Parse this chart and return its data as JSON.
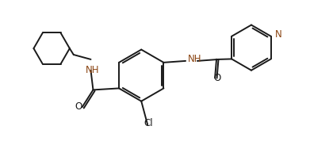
{
  "bg_color": "#ffffff",
  "line_color": "#1a1a1a",
  "heteroatom_color": "#8B4513",
  "lw": 1.4,
  "figsize": [
    3.91,
    2.12
  ],
  "dpi": 100,
  "xlim": [
    0,
    391
  ],
  "ylim": [
    0,
    212
  ]
}
